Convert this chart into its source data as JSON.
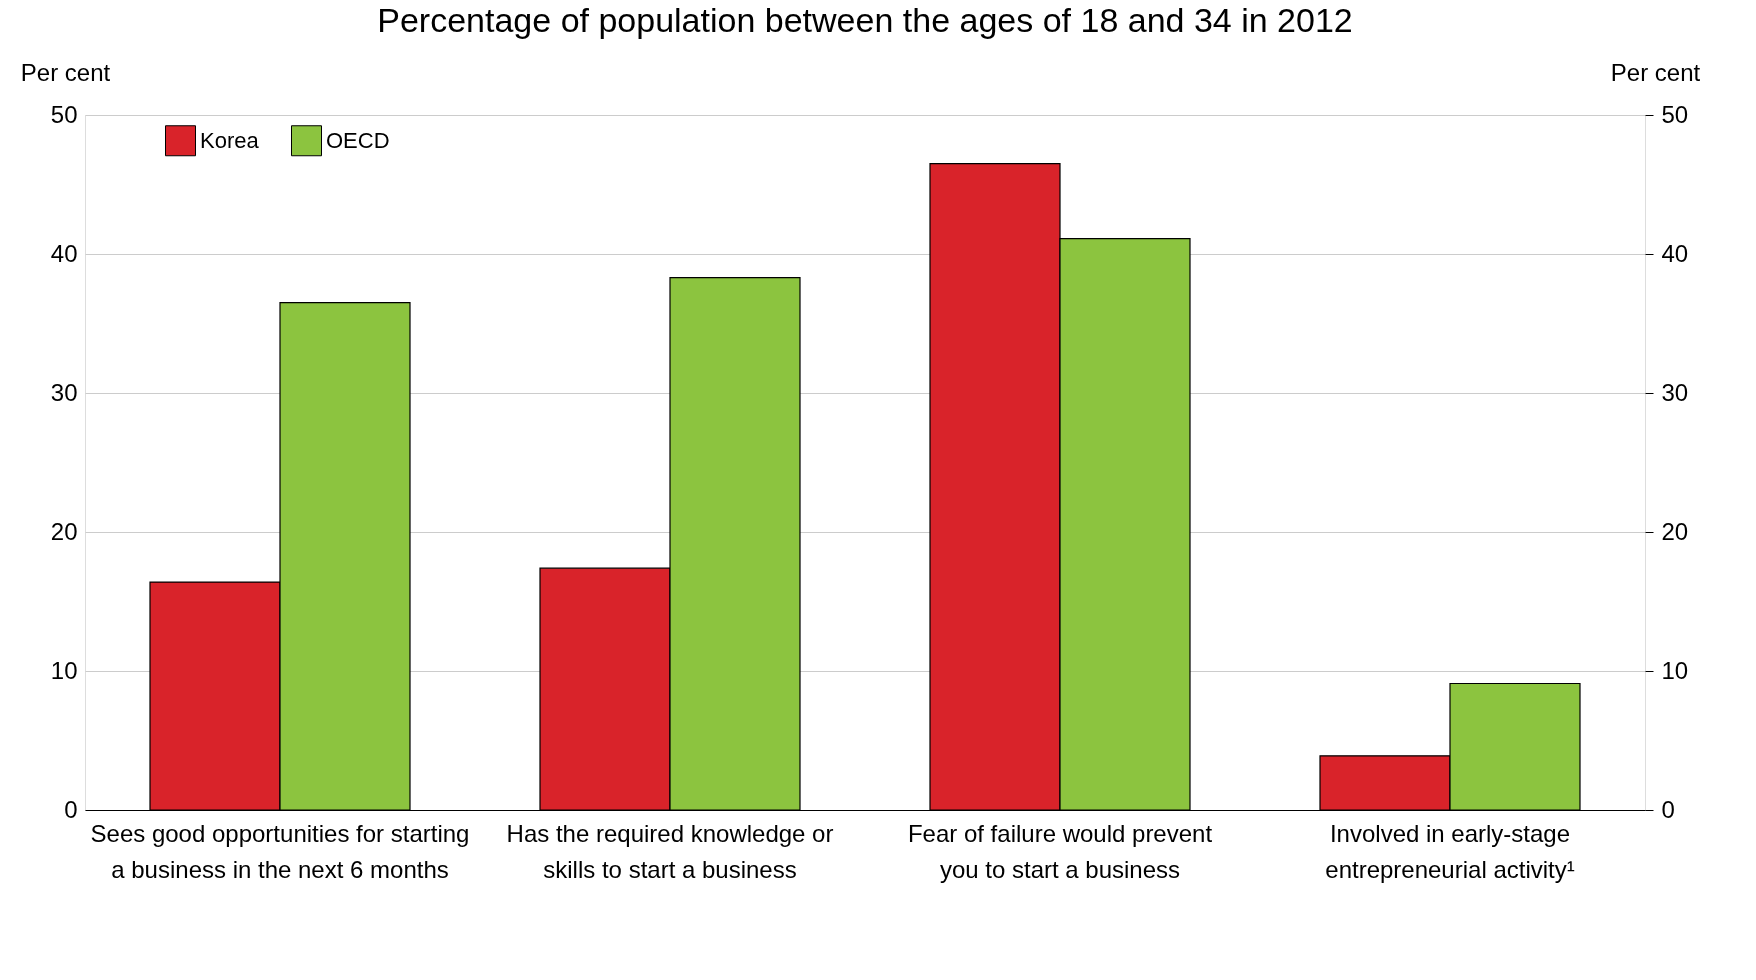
{
  "chart_data": {
    "type": "bar",
    "title": "Percentage of population between the ages of 18 and 34 in 2012",
    "ylabel": "Per cent",
    "y2label": "Per cent",
    "categories": [
      "Sees good opportunities for starting a business in the next 6 months",
      "Has the required knowledge or skills to start a business",
      "Fear of failure would prevent you to start a business",
      "Involved in early-stage entrepreneurial activity¹"
    ],
    "series": [
      {
        "name": "Korea",
        "color": "#d9232a",
        "values": [
          16.4,
          17.4,
          46.5,
          3.9
        ]
      },
      {
        "name": "OECD",
        "color": "#8cc43f",
        "values": [
          36.5,
          38.3,
          41.1,
          9.1
        ]
      }
    ],
    "ylim": [
      0,
      50
    ],
    "yticks": [
      0,
      10,
      20,
      30,
      40,
      50
    ],
    "y2lim": [
      0,
      50
    ],
    "y2ticks": [
      0,
      10,
      20,
      30,
      40,
      50
    ],
    "grid": "y",
    "legend": "top left"
  }
}
